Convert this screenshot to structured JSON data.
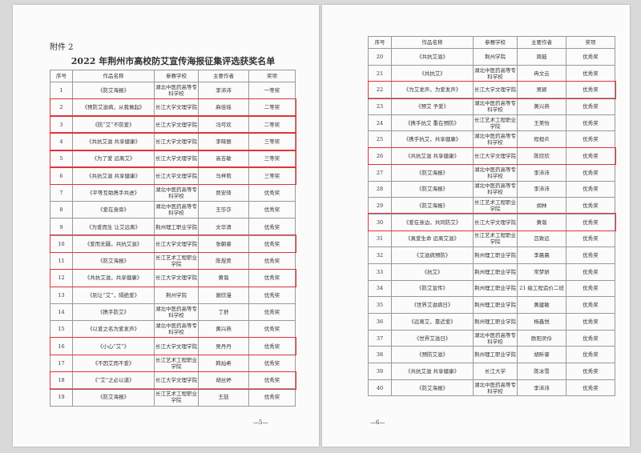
{
  "attachment_label": "附件 2",
  "title": "2022 年荆州市高校防艾宣传海报征集评选获奖名单",
  "columns": [
    "序号",
    "作品名称",
    "参赛学校",
    "主要作者",
    "奖项"
  ],
  "highlight_color": "#e0333a",
  "page1": {
    "page_number": "—5—",
    "rows": [
      [
        "1",
        "《防艾海报》",
        "湖北中医药高等专科学校",
        "李沛沛",
        "一等奖",
        false
      ],
      [
        "2",
        "《预防艾滋病，从我做起》",
        "长江大学文理学院",
        "麻佳瑶",
        "二等奖",
        true
      ],
      [
        "3",
        "《防“艾”不防爱》",
        "长江大学文理学院",
        "冯可欢",
        "二等奖",
        true
      ],
      [
        "4",
        "《共抗艾滋 共享健康》",
        "长江大学文理学院",
        "李晓丽",
        "三等奖",
        true
      ],
      [
        "5",
        "《为了爱 远离艾》",
        "长江大学文理学院",
        "高吉敏",
        "三等奖",
        true
      ],
      [
        "6",
        "《共抗艾滋 共享健康》",
        "长江大学文理学院",
        "马梓莉",
        "三等奖",
        true
      ],
      [
        "7",
        "《平等互助携手共进》",
        "湖北中医药高等专科学校",
        "贾安琦",
        "优秀奖",
        false
      ],
      [
        "8",
        "《爱在身旁》",
        "湖北中医药高等专科学校",
        "王莎莎",
        "优秀奖",
        false
      ],
      [
        "9",
        "《为爱而生 让艾远离》",
        "荆州理工职业学院",
        "文华清",
        "优秀奖",
        false
      ],
      [
        "10",
        "《爱而无疆，共抗艾滋》",
        "长江大学文理学院",
        "张朝睿",
        "优秀奖",
        true
      ],
      [
        "11",
        "《防艾海报》",
        "长江艺术工程职业学院",
        "陈煜昊",
        "优秀奖",
        false
      ],
      [
        "12",
        "《共抗艾滋，共享健康》",
        "长江大学文理学院",
        "黄谐",
        "优秀奖",
        true
      ],
      [
        "13",
        "《别让“艾”，隔绝爱》",
        "荆州学院",
        "谢欣漫",
        "优秀奖",
        false
      ],
      [
        "14",
        "《携手防艾》",
        "湖北中医药高等专科学校",
        "丁舒",
        "优秀奖",
        false
      ],
      [
        "15",
        "《以爱之名为爱发声》",
        "湖北中医药高等专科学校",
        "黄兴燕",
        "优秀奖",
        false
      ],
      [
        "16",
        "《小心“艾”》",
        "长江大学文理学院",
        "吴丹丹",
        "优秀奖",
        true
      ],
      [
        "17",
        "《不因艾而不爱》",
        "长江艺术工程职业学院",
        "韩灿希",
        "优秀奖",
        false
      ],
      [
        "18",
        "《“艾”之必以道》",
        "长江大学文理学院",
        "胡丝婷",
        "优秀奖",
        true
      ],
      [
        "19",
        "《防艾海报》",
        "长江艺术工程职业学院",
        "王喆",
        "优秀奖",
        false
      ]
    ]
  },
  "page2": {
    "page_number": "—6—",
    "rows": [
      [
        "20",
        "《共抗艾滋》",
        "荆州学院",
        "周鼓",
        "优秀奖",
        false
      ],
      [
        "21",
        "《共抗艾》",
        "湖北中医药高等专科学校",
        "冉文云",
        "优秀奖",
        false
      ],
      [
        "22",
        "《为艾发声，为爱发声》",
        "长江大学文理学院",
        "吴颖",
        "优秀奖",
        true
      ],
      [
        "23",
        "《预艾 予爱》",
        "湖北中医药高等专科学校",
        "黄兴燕",
        "优秀奖",
        false
      ],
      [
        "24",
        "《携手抗艾 重在预防》",
        "长江艺术工程职业学院",
        "王美怡",
        "优秀奖",
        false
      ],
      [
        "25",
        "《携手抗艾，共享健康》",
        "湖北中医药高等专科学校",
        "程桓炎",
        "优秀奖",
        false
      ],
      [
        "26",
        "《共抗艾滋 共享健康》",
        "长江大学文理学院",
        "陈欣欣",
        "优秀奖",
        true
      ],
      [
        "27",
        "《防艾海报》",
        "湖北中医药高等专科学校",
        "李沛沛",
        "优秀奖",
        false
      ],
      [
        "28",
        "《防艾海报》",
        "湖北中医药高等专科学校",
        "李沛沛",
        "优秀奖",
        false
      ],
      [
        "29",
        "《防艾海报》",
        "长江艺术工程职业学院",
        "胡林",
        "优秀奖",
        false
      ],
      [
        "30",
        "《爱在身边，共同防艾》",
        "长江大学文理学院",
        "黄谐",
        "优秀奖",
        true
      ],
      [
        "31",
        "《真爱生命 远离艾滋》",
        "长江艺术工程职业学院",
        "吕致远",
        "优秀奖",
        false
      ],
      [
        "32",
        "《艾滋病预防》",
        "荆州理工职业学院",
        "李晨晨",
        "优秀奖",
        false
      ],
      [
        "33",
        "《抗艾》",
        "荆州理工职业学院",
        "常梦娇",
        "优秀奖",
        false
      ],
      [
        "34",
        "《防艾宣传》",
        "荆州理工职业学院",
        "21 级工程造价二班",
        "优秀奖",
        false
      ],
      [
        "35",
        "《世界艾滋病日》",
        "荆州理工职业学院",
        "黄建敏",
        "优秀奖",
        false
      ],
      [
        "36",
        "《远离艾，靠近爱》",
        "荆州理工职业学院",
        "杨鑫悦",
        "优秀奖",
        false
      ],
      [
        "37",
        "《世界艾滋日》",
        "湖北中医药高等专科学校",
        "欧阳灵伶",
        "优秀奖",
        false
      ],
      [
        "38",
        "《预防艾滋》",
        "荆州理工职业学院",
        "胡昕睿",
        "优秀奖",
        false
      ],
      [
        "39",
        "《共抗艾滋 共享健康》",
        "长江大学",
        "陈冰雪",
        "优秀奖",
        false
      ],
      [
        "40",
        "《防艾海报》",
        "湖北中医药高等专科学校",
        "李沛沛",
        "优秀奖",
        false
      ]
    ]
  }
}
